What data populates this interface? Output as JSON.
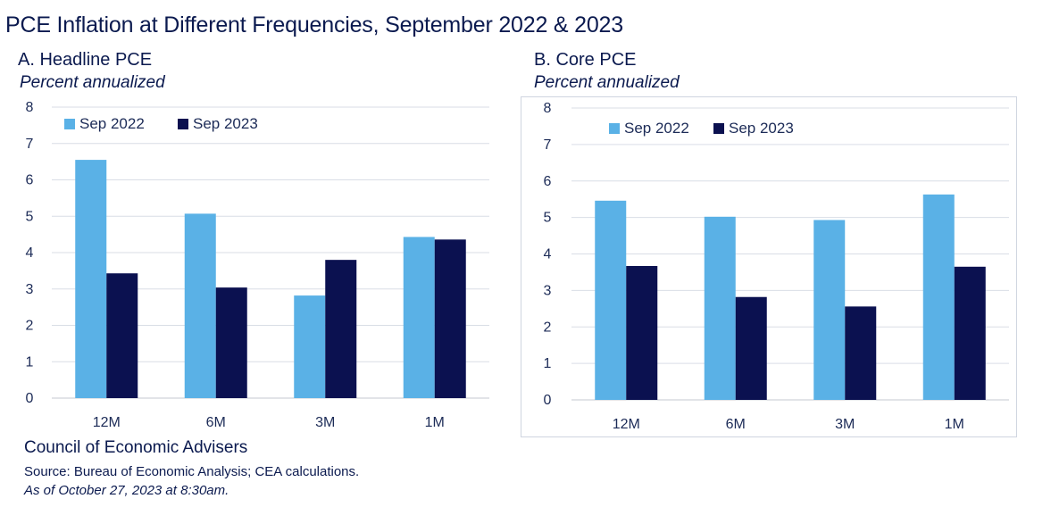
{
  "header": {
    "title": "PCE Inflation at Different Frequencies, September 2022 & 2023"
  },
  "footer": {
    "org": "Council of Economic Advisers",
    "source": "Source: Bureau of Economic Analysis; CEA calculations.",
    "as_of": "As of October 27, 2023 at 8:30am."
  },
  "colors": {
    "sep2022": "#5ab1e6",
    "sep2023": "#0b1150",
    "gridline": "#d9dee6",
    "text": "#0b1a4f"
  },
  "chart_data": [
    {
      "type": "bar",
      "title": "A. Headline PCE",
      "subtitle": "Percent annualized",
      "categories": [
        "12M",
        "6M",
        "3M",
        "1M"
      ],
      "series": [
        {
          "name": "Sep 2022",
          "values": [
            6.55,
            5.07,
            2.82,
            4.43
          ]
        },
        {
          "name": "Sep 2023",
          "values": [
            3.43,
            3.04,
            3.8,
            4.36
          ]
        }
      ],
      "ylim": [
        0,
        8
      ],
      "yticks": [
        "0",
        "1",
        "2",
        "3",
        "4",
        "5",
        "6",
        "7",
        "8"
      ],
      "grid": true,
      "legend": "top-left"
    },
    {
      "type": "bar",
      "title": "B. Core PCE",
      "subtitle": "Percent annualized",
      "categories": [
        "12M",
        "6M",
        "3M",
        "1M"
      ],
      "series": [
        {
          "name": "Sep 2022",
          "values": [
            5.46,
            5.02,
            4.93,
            5.63
          ]
        },
        {
          "name": "Sep 2023",
          "values": [
            3.67,
            2.82,
            2.56,
            3.65
          ]
        }
      ],
      "ylim": [
        0,
        8
      ],
      "yticks": [
        "0",
        "1",
        "2",
        "3",
        "4",
        "5",
        "6",
        "7",
        "8"
      ],
      "grid": true,
      "legend": "top-left"
    }
  ]
}
